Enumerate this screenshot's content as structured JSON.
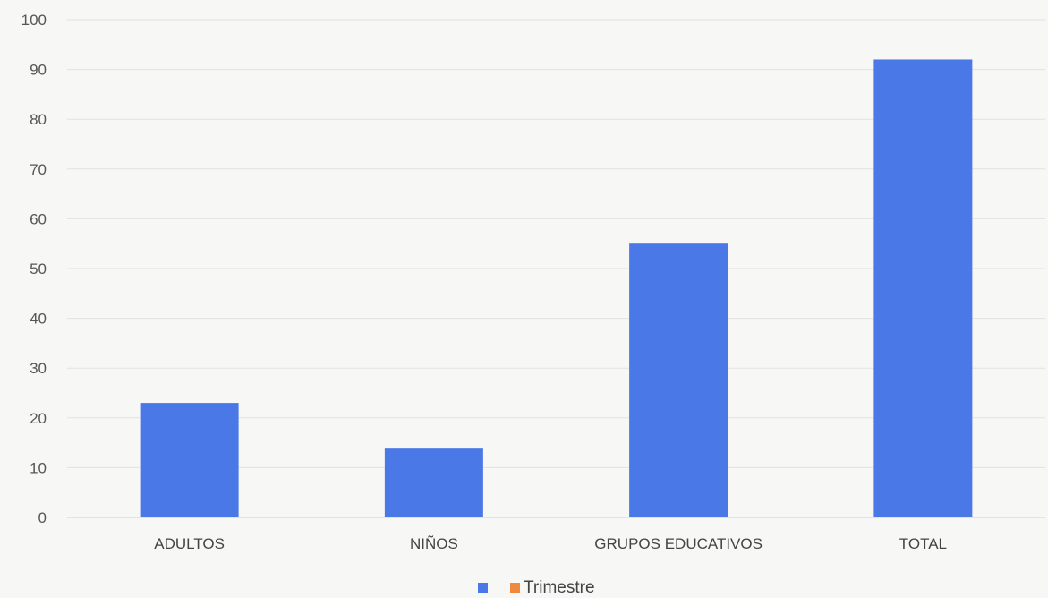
{
  "chart_data": {
    "type": "bar",
    "title": "",
    "xlabel": "",
    "ylabel": "",
    "categories": [
      "ADULTOS",
      "NIÑOS",
      "GRUPOS EDUCATIVOS",
      "TOTAL"
    ],
    "series": [
      {
        "name": "",
        "values": [
          23,
          14,
          55,
          92
        ],
        "color": "#4a78e6"
      },
      {
        "name": "Trimestre",
        "values": [
          0,
          0,
          0,
          0
        ],
        "color": "#ed8a3c"
      }
    ],
    "ylim": [
      0,
      100
    ],
    "yticks": [
      0,
      10,
      20,
      30,
      40,
      50,
      60,
      70,
      80,
      90,
      100
    ],
    "grid": true,
    "legend_position": "bottom"
  }
}
